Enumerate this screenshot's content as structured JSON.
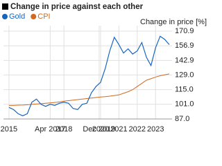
{
  "chart_data": {
    "type": "line",
    "title": "Change in price against each other",
    "y_label": "Change in price [%]",
    "x": [
      2015.0,
      2015.25,
      2015.5,
      2015.75,
      2016.0,
      2016.25,
      2016.5,
      2016.75,
      2017.0,
      2017.25,
      2017.5,
      2017.75,
      2018.0,
      2018.25,
      2018.5,
      2018.75,
      2019.0,
      2019.25,
      2019.5,
      2019.75,
      2020.0,
      2020.25,
      2020.5,
      2020.75,
      2021.0,
      2021.25,
      2021.5,
      2021.75,
      2022.0,
      2022.25,
      2022.5,
      2022.75,
      2023.0,
      2023.25,
      2023.5,
      2023.75
    ],
    "series": [
      {
        "name": "Gold",
        "color": "#1565c0",
        "values": [
          98,
          96,
          92,
          90,
          92,
          103,
          106,
          101,
          99,
          101,
          100,
          102,
          103,
          102,
          97,
          96,
          101,
          102,
          112,
          118,
          122,
          135,
          152,
          165,
          158,
          150,
          154,
          149,
          152,
          160,
          146,
          138,
          155,
          166,
          163,
          158
        ]
      },
      {
        "name": "CPI",
        "color": "#d2691e",
        "values": [
          100,
          100,
          100.2,
          100.3,
          100.5,
          101,
          101.3,
          101.6,
          102,
          102.4,
          102.8,
          103.3,
          104,
          104.5,
          105,
          105.5,
          106,
          106.5,
          107,
          107.5,
          108,
          108.3,
          108.8,
          109.4,
          110,
          111.5,
          113,
          115,
          118,
          121,
          124,
          125.5,
          127,
          128.3,
          129.2,
          130
        ]
      }
    ],
    "xlim": [
      2014.7,
      2023.9
    ],
    "xticks": [
      2015,
      {
        "value": 2017.25,
        "label": "Apr 2017"
      },
      2018,
      {
        "value": 2019.92,
        "label": "Dec 2019"
      },
      2020,
      2021,
      2022,
      2023
    ],
    "ylim": [
      87,
      170.9
    ],
    "yticks": [
      170.9,
      156.9,
      142.9,
      {
        "value": 129,
        "label": "129.0"
      },
      {
        "value": 115,
        "label": "115.0"
      },
      {
        "value": 101,
        "label": "101.0"
      },
      {
        "value": 87,
        "label": "87.0"
      }
    ],
    "grid": true
  }
}
